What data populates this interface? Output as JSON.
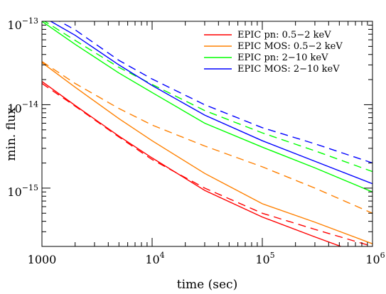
{
  "chart_data": {
    "type": "line",
    "xlabel": "time (sec)",
    "ylabel": "min. flux",
    "xscale": "log",
    "yscale": "log",
    "xlim": [
      1000,
      1000000
    ],
    "ylim": [
      2e-16,
      1e-13
    ],
    "grid": false,
    "legend_position": "top-right",
    "x_ticks": [
      {
        "value": 1000,
        "base": "1000",
        "exp": ""
      },
      {
        "value": 10000,
        "base": "10",
        "exp": "4"
      },
      {
        "value": 100000,
        "base": "10",
        "exp": "5"
      },
      {
        "value": 1000000,
        "base": "10",
        "exp": "6"
      }
    ],
    "y_ticks": [
      {
        "value": 1e-15,
        "base": "10",
        "exp": "−15"
      },
      {
        "value": 1e-14,
        "base": "10",
        "exp": "−14"
      },
      {
        "value": 1e-13,
        "base": "10",
        "exp": "−13"
      }
    ],
    "x": [
      1000,
      2000,
      5000,
      10000,
      30000,
      100000,
      300000,
      1000000
    ],
    "series": [
      {
        "name": "EPIC pn: 0.5−2 keV",
        "color": "#ff0000",
        "solid": [
          1.9e-14,
          9.8e-15,
          4.2e-15,
          2.3e-15,
          9.4e-16,
          4.5e-16,
          2.6e-16,
          1.45e-16
        ],
        "dashed": [
          1.8e-14,
          9.6e-15,
          4.1e-15,
          2.2e-15,
          1e-15,
          5e-16,
          3.2e-16,
          2e-16
        ]
      },
      {
        "name": "EPIC MOS: 0.5−2 keV",
        "color": "#ff8000",
        "solid": [
          3.2e-14,
          1.62e-14,
          6.8e-15,
          3.7e-15,
          1.5e-15,
          6.5e-16,
          3.9e-16,
          2.15e-16
        ],
        "dashed": [
          3.3e-14,
          1.8e-14,
          9e-15,
          5.7e-15,
          3.2e-15,
          1.8e-15,
          1e-15,
          5e-16
        ]
      },
      {
        "name": "EPIC pn: 2−10 keV",
        "color": "#00ff00",
        "solid": [
          1e-13,
          5.3e-14,
          2.4e-14,
          1.4e-14,
          6e-15,
          3.1e-15,
          1.75e-15,
          9e-16
        ],
        "dashed": [
          1.05e-13,
          5.9e-14,
          2.8e-14,
          1.75e-14,
          8.5e-15,
          4.6e-15,
          2.8e-15,
          1.58e-15
        ]
      },
      {
        "name": "EPIC MOS: 2−10 keV",
        "color": "#0000ff",
        "solid": [
          1.15e-13,
          6.8e-14,
          3e-14,
          1.7e-14,
          7.5e-15,
          3.7e-15,
          2.1e-15,
          1.13e-15
        ],
        "dashed": [
          1.3e-13,
          7.9e-14,
          3.4e-14,
          2.03e-14,
          1e-14,
          5.3e-15,
          3.4e-15,
          2e-15
        ]
      }
    ]
  }
}
